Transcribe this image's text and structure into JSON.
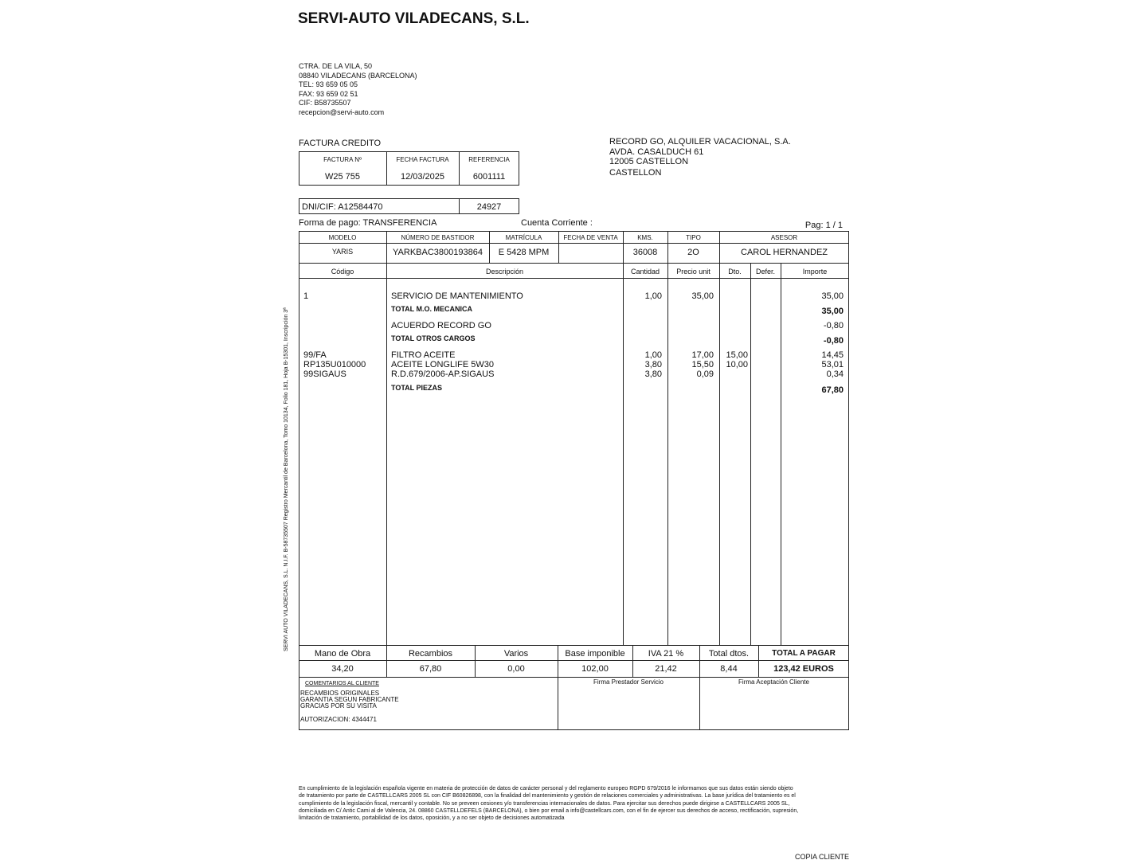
{
  "company": {
    "name": "SERVI-AUTO VILADECANS, S.L.",
    "address": [
      "CTRA. DE LA VILA, 50",
      "08840 VILADECANS (BARCELONA)",
      "TEL:  93 659 05 05",
      "FAX:  93 659 02 51",
      "CIF: B58735507",
      "recepcion@servi-auto.com"
    ]
  },
  "doc_type": "FACTURA CREDITO",
  "invoice": {
    "labels": [
      "FACTURA Nº",
      "FECHA FACTURA",
      "REFERENCIA"
    ],
    "values": [
      "W25 755",
      "12/03/2025",
      "6001111"
    ]
  },
  "customer": {
    "lines": [
      "RECORD GO, ALQUILER VACACIONAL, S.A.",
      "AVDA. CASALDUCH 61",
      "12005 CASTELLON",
      "CASTELLON"
    ],
    "dni": "DNI/CIF: A12584470",
    "code": "24927"
  },
  "payment": "Forma de pago:  TRANSFERENCIA",
  "account": "Cuenta Corriente :",
  "page": "Pag: 1 / 1",
  "vehicle": {
    "headers": [
      "MODELO",
      "NÚMERO DE BASTIDOR",
      "MATRÍCULA",
      "FECHA DE VENTA",
      "KMS.",
      "TIPO",
      "ASESOR"
    ],
    "values": [
      "YARIS",
      "YARKBAC3800193864",
      "E 5428 MPM",
      "",
      "36008",
      "2O",
      "CAROL HERNANDEZ"
    ]
  },
  "lines_header": [
    "Código",
    "Descripción",
    "Cantidad",
    "Precio unit",
    "Dto.",
    "Defer.",
    "Importe"
  ],
  "lines": [
    {
      "code": "1",
      "desc": "SERVICIO DE MANTENIMIENTO",
      "qty": "1,00",
      "price": "35,00",
      "dto": "",
      "amount": "35,00"
    },
    {
      "code": "",
      "desc": "TOTAL M.O. MECANICA",
      "qty": "",
      "price": "",
      "dto": "",
      "amount": "35,00",
      "total": true
    },
    {
      "code": "",
      "desc": "ACUERDO RECORD GO",
      "qty": "",
      "price": "",
      "dto": "",
      "amount": "-0,80"
    },
    {
      "code": "",
      "desc": "TOTAL OTROS CARGOS",
      "qty": "",
      "price": "",
      "dto": "",
      "amount": "-0,80",
      "total": true
    },
    {
      "code": "99/FA",
      "desc": "FILTRO ACEITE",
      "qty": "1,00",
      "price": "17,00",
      "dto": "15,00",
      "amount": "14,45"
    },
    {
      "code": "RP135U010000",
      "desc": "ACEITE LONGLIFE  5W30",
      "qty": "3,80",
      "price": "15,50",
      "dto": "10,00",
      "amount": "53,01"
    },
    {
      "code": "99SIGAUS",
      "desc": "R.D.679/2006-AP.SIGAUS",
      "qty": "3,80",
      "price": "0,09",
      "dto": "",
      "amount": "0,34"
    },
    {
      "code": "",
      "desc": "TOTAL PIEZAS",
      "qty": "",
      "price": "",
      "dto": "",
      "amount": "67,80",
      "total": true
    }
  ],
  "summary": {
    "headers": [
      "Mano de Obra",
      "Recambios",
      "Varios",
      "Base imponible",
      "IVA  21 %",
      "Total dtos.",
      "TOTAL A PAGAR"
    ],
    "values": [
      "34,20",
      "67,80",
      "0,00",
      "102,00",
      "21,42",
      "8,44",
      "123,42 EUROS"
    ]
  },
  "comments": {
    "title": "COMENTARIOS AL CLIENTE",
    "lines": [
      "RECAMBIOS ORIGINALES",
      "GARANTIA SEGUN FABRICANTE",
      "GRACIAS POR SU VISITA"
    ],
    "auth": "AUTORIZACION: 4344471"
  },
  "signatures": [
    "Firma Prestador Servicio",
    "Firma Aceptación Cliente"
  ],
  "side_text": "SERVI AUTO VILADECANS, S.L.  N.I.F. B-58735507  Registro Mercantil de Barcelona, Tomo 10134, Folio 181, Hoja B-15301, Inscripción 3ª",
  "legal": [
    "En  cumplimiento  de  la legislación española vigente en materia de protección de datos de carácter personal y del reglamento europeo RGPD 679/2016 le informamos que sus datos están siendo  objeto",
    "de  tratamiento por parte de CASTELLCARS 2005 SL con CIF B60826898, con la finalidad del mantenimiento y gestión de relaciones comerciales y administrativas. La base jurídica del tratamiento es  el",
    "cumplimiento  de  la  legislación  fiscal,  mercantil y contable. No se preveen cesiones y/o transferencias internacionales de datos. Para ejercitar sus derechos puede dirigirse a CASTELLCARS 2005  SL,",
    "domiciliada en C/ Antic Cami al de Valencia, 24. 08860 CASTELLDEFELS (BARCELONA), o bien por email a info@castellcars.com, con el fin de ejercer sus derechos de acceso, rectificación, supresión,",
    "limitación de tratamiento, portabilidad de los datos, oposición, y a no ser objeto de decisiones automatizada"
  ],
  "copy": "COPIA CLIENTE"
}
